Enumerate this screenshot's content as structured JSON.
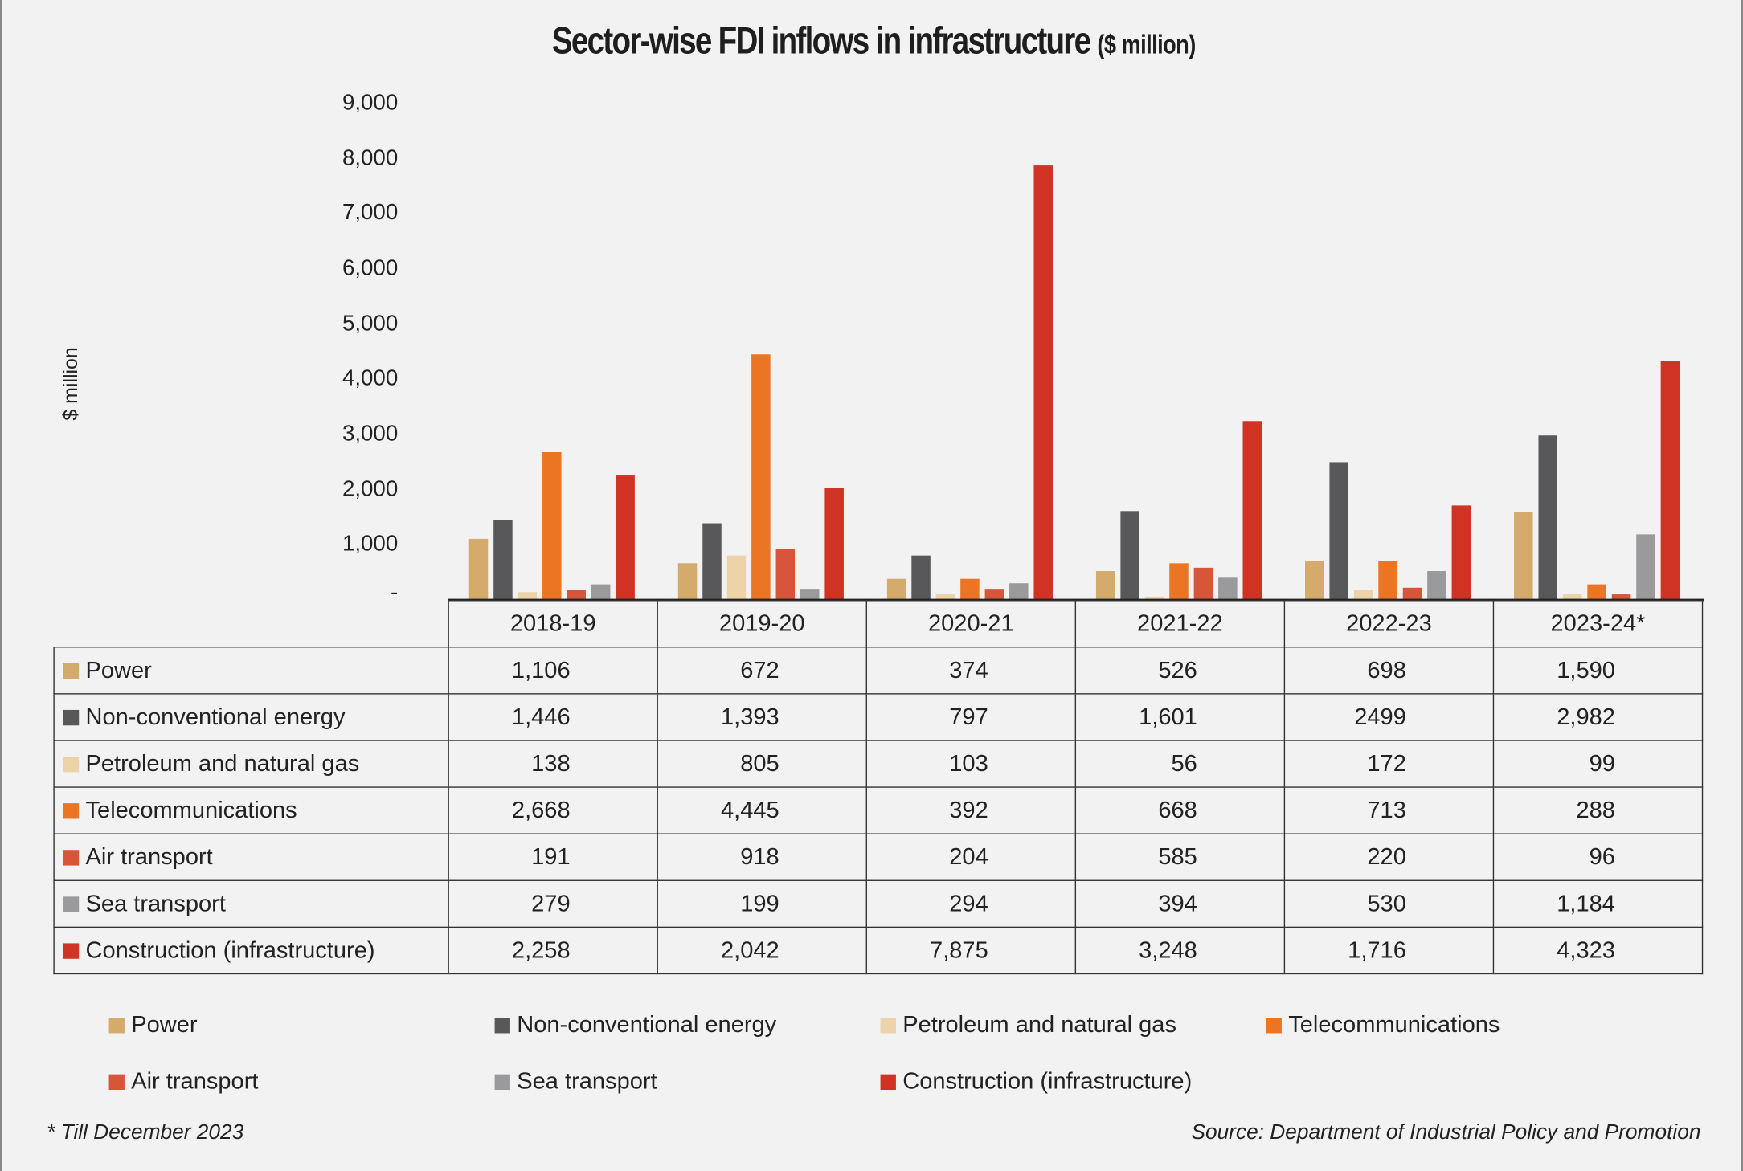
{
  "chart_data": {
    "type": "bar",
    "title": "Sector-wise FDI inflows in infrastructure",
    "title_unit": "($ million)",
    "ylabel": "$ million",
    "ylim": [
      0,
      9000
    ],
    "yticks": [
      "-",
      "1,000",
      "2,000",
      "3,000",
      "4,000",
      "5,000",
      "6,000",
      "7,000",
      "8,000",
      "9,000"
    ],
    "grid": false,
    "legend_placement": "bottom",
    "categories": [
      "2018-19",
      "2019-20",
      "2020-21",
      "2021-22",
      "2022-23",
      "2023-24*"
    ],
    "series": [
      {
        "name": "Power",
        "color": "#d4ab6a",
        "values": [
          1106,
          672,
          374,
          526,
          698,
          1590
        ],
        "labels": [
          "1,106",
          "672",
          "374",
          "526",
          "698",
          "1,590"
        ]
      },
      {
        "name": "Non-conventional energy",
        "color": "#58585a",
        "values": [
          1446,
          1393,
          797,
          1601,
          2499,
          2982
        ],
        "labels": [
          "1,446",
          "1,393",
          "797",
          "1,601",
          "2499",
          "2,982"
        ]
      },
      {
        "name": "Petroleum and natural gas",
        "color": "#ecd3a8",
        "values": [
          138,
          805,
          103,
          56,
          172,
          99
        ],
        "labels": [
          "138",
          "805",
          "103",
          "56",
          "172",
          "99"
        ]
      },
      {
        "name": "Telecommunications",
        "color": "#ec7524",
        "values": [
          2668,
          4445,
          392,
          668,
          713,
          288
        ],
        "labels": [
          "2,668",
          "4,445",
          "392",
          "668",
          "713",
          "288"
        ]
      },
      {
        "name": "Air transport",
        "color": "#d9553a",
        "values": [
          191,
          918,
          204,
          585,
          220,
          96
        ],
        "labels": [
          "191",
          "918",
          "204",
          "585",
          "220",
          "96"
        ]
      },
      {
        "name": "Sea transport",
        "color": "#9a9a9c",
        "values": [
          279,
          199,
          294,
          394,
          530,
          1184
        ],
        "labels": [
          "279",
          "199",
          "294",
          "394",
          "530",
          "1,184"
        ]
      },
      {
        "name": "Construction (infrastructure)",
        "color": "#d03224",
        "values": [
          2258,
          2042,
          7875,
          3248,
          1716,
          4323
        ],
        "labels": [
          "2,258",
          "2,042",
          "7,875",
          "3,248",
          "1,716",
          "4,323"
        ]
      }
    ]
  },
  "footnote": "* Till December 2023",
  "source": "Source: Department of Industrial Policy and Promotion"
}
